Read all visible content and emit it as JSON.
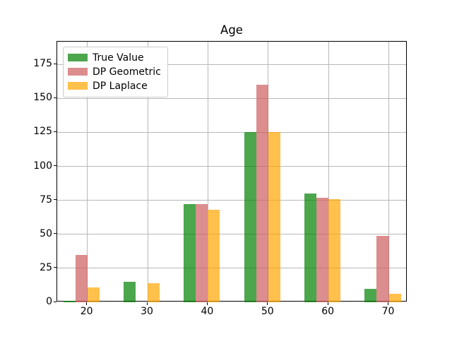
{
  "title": "Age",
  "chart_data": {
    "type": "bar",
    "title": "Age",
    "categories": [
      "20",
      "30",
      "40",
      "50",
      "60",
      "70"
    ],
    "x_numeric": [
      20,
      30,
      40,
      50,
      60,
      70
    ],
    "series": [
      {
        "name": "True Value",
        "color": "#008000",
        "blended_color": "#4da64d",
        "values": [
          1,
          15,
          72,
          125,
          80,
          10
        ]
      },
      {
        "name": "DP Geometric",
        "color": "#cd5c5c",
        "blended_color": "#dc8d8d",
        "values": [
          35,
          0,
          72,
          160,
          77,
          49
        ]
      },
      {
        "name": "DP Laplace",
        "color": "#ffa500",
        "blended_color": "#ffc04d",
        "values": [
          11,
          14,
          68,
          125,
          76,
          6
        ]
      }
    ],
    "bar_alpha": 0.7,
    "bar_width_units": 2,
    "bar_offset_units": [
      -4,
      -2,
      0
    ],
    "xlabel": "",
    "ylabel": "",
    "yticks": [
      0,
      25,
      50,
      75,
      100,
      125,
      150,
      175
    ],
    "ylim": [
      0,
      192
    ],
    "xlim": [
      15.0,
      73.1
    ],
    "grid": true,
    "grid_color": "#b8b8b8",
    "axes_color": "#000000",
    "background": "#ffffff",
    "legend_position": "upper left"
  }
}
